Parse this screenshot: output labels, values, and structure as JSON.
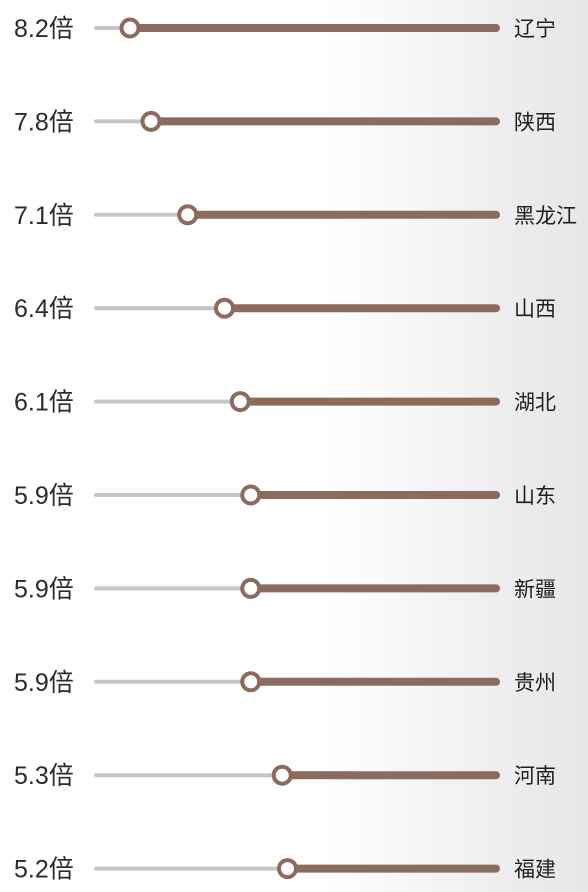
{
  "chart_data": {
    "type": "dumbbell",
    "value_suffix": "倍",
    "categories": [
      "辽宁",
      "陕西",
      "黑龙江",
      "山西",
      "湖北",
      "山东",
      "新疆",
      "贵州",
      "河南",
      "福建"
    ],
    "values": [
      8.2,
      7.8,
      7.1,
      6.4,
      6.1,
      5.9,
      5.9,
      5.9,
      5.3,
      5.2
    ],
    "value_labels": [
      "8.2倍",
      "7.8倍",
      "7.1倍",
      "6.4倍",
      "6.1倍",
      "5.9倍",
      "5.9倍",
      "5.9倍",
      "5.3倍",
      "5.2倍"
    ],
    "title": "",
    "xlabel": "",
    "ylabel": "",
    "grid": false,
    "legend": "none"
  },
  "colors": {
    "track": "#c6c6c6",
    "bar": "#8c6a5d",
    "marker_fill": "#ffffff",
    "text": "#2b2b2b"
  }
}
